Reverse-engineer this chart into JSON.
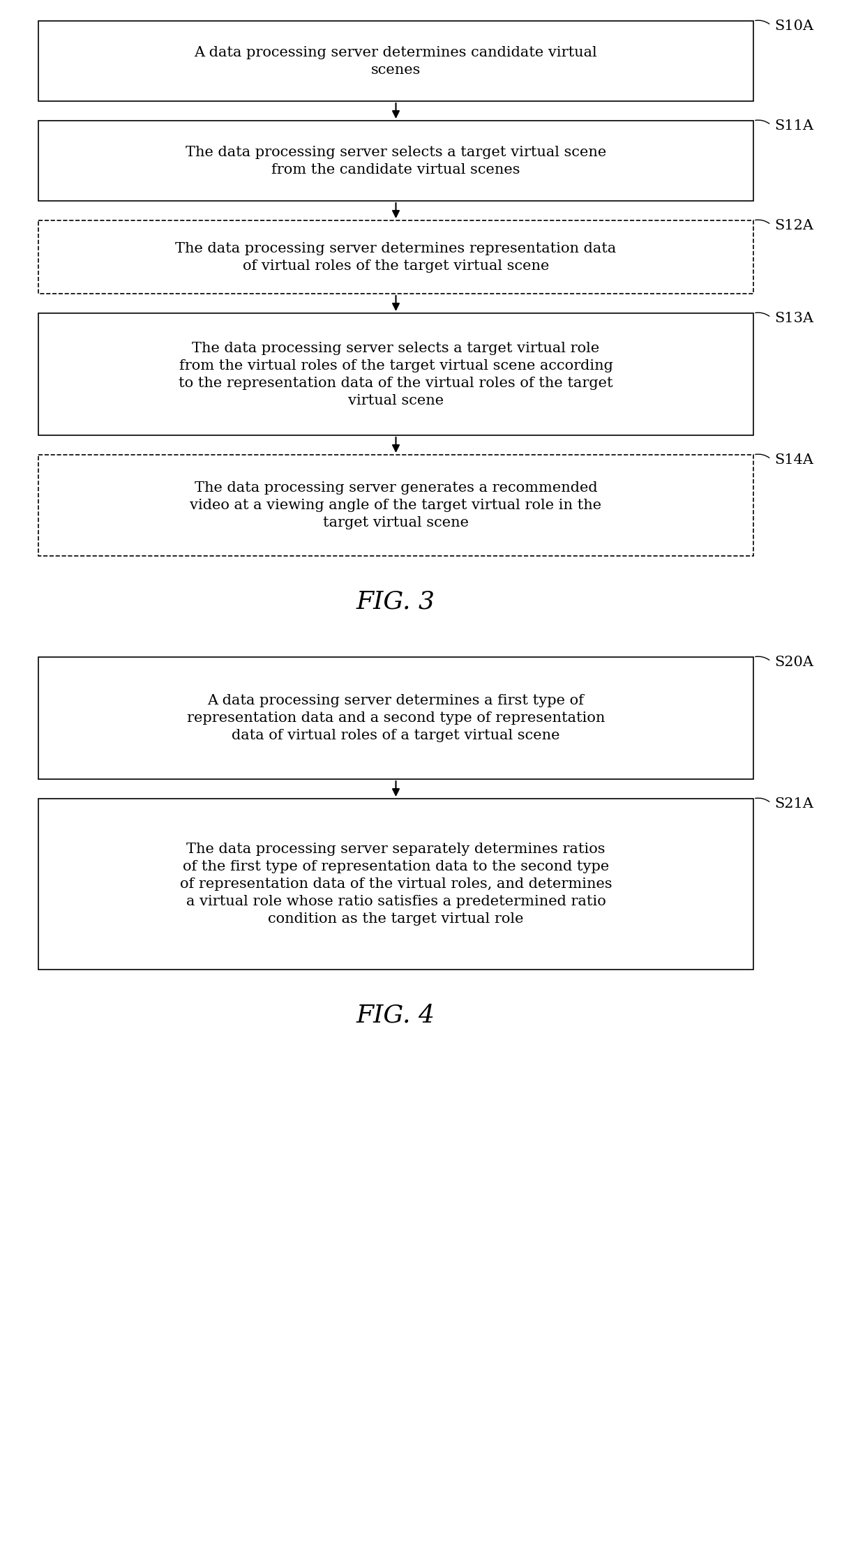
{
  "fig3_boxes": [
    {
      "label": "S10A",
      "text": "A data processing server determines candidate virtual\nscenes",
      "border": "solid"
    },
    {
      "label": "S11A",
      "text": "The data processing server selects a target virtual scene\nfrom the candidate virtual scenes",
      "border": "solid"
    },
    {
      "label": "S12A",
      "text": "The data processing server determines representation data\nof virtual roles of the target virtual scene",
      "border": "dashed"
    },
    {
      "label": "S13A",
      "text": "The data processing server selects a target virtual role\nfrom the virtual roles of the target virtual scene according\nto the representation data of the virtual roles of the target\nvirtual scene",
      "border": "solid"
    },
    {
      "label": "S14A",
      "text": "The data processing server generates a recommended\nvideo at a viewing angle of the target virtual role in the\ntarget virtual scene",
      "border": "dashed"
    }
  ],
  "fig3_caption": "FIG. 3",
  "fig4_boxes": [
    {
      "label": "S20A",
      "text": "A data processing server determines a first type of\nrepresentation data and a second type of representation\ndata of virtual roles of a target virtual scene",
      "border": "solid"
    },
    {
      "label": "S21A",
      "text": "The data processing server separately determines ratios\nof the first type of representation data to the second type\nof representation data of the virtual roles, and determines\na virtual role whose ratio satisfies a predetermined ratio\ncondition as the target virtual role",
      "border": "solid"
    }
  ],
  "fig4_caption": "FIG. 4",
  "bg_color": "#ffffff",
  "box_edge_color": "#000000",
  "text_color": "#000000",
  "arrow_color": "#000000",
  "caption_fontsize": 26,
  "label_fontsize": 15,
  "text_fontsize": 15
}
